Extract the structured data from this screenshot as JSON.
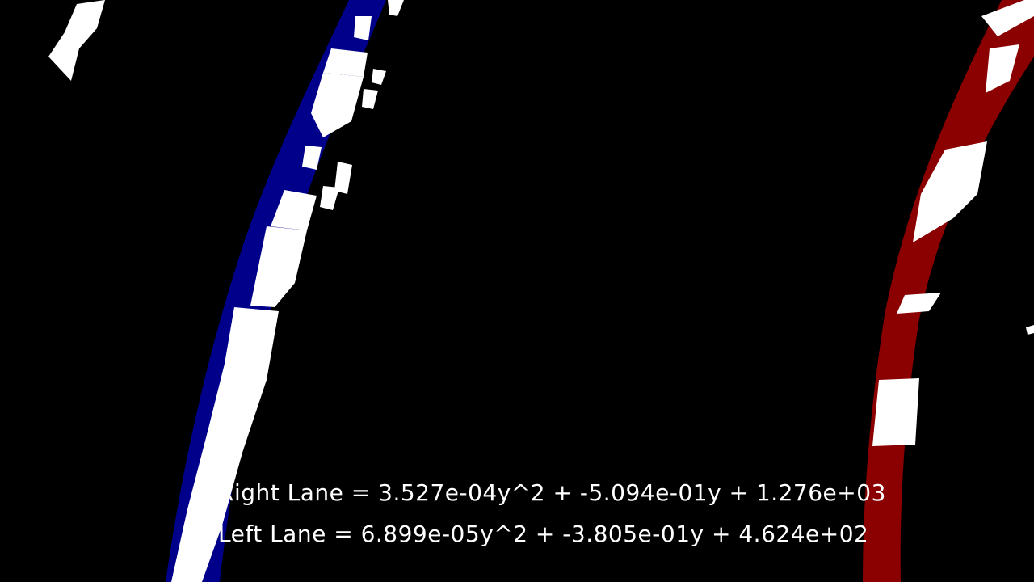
{
  "colors": {
    "background": "#000000",
    "left_lane_fill": "#00008b",
    "right_lane_fill": "#8b0000",
    "lane_pixels": "#ffffff",
    "text": "#ffffff"
  },
  "equations": {
    "right_lane": "Right Lane = 3.527e-04y^2 + -5.094e-01y + 1.276e+03",
    "left_lane": "Left Lane = 6.899e-05y^2 + -3.805e-01y + 4.624e+02"
  }
}
